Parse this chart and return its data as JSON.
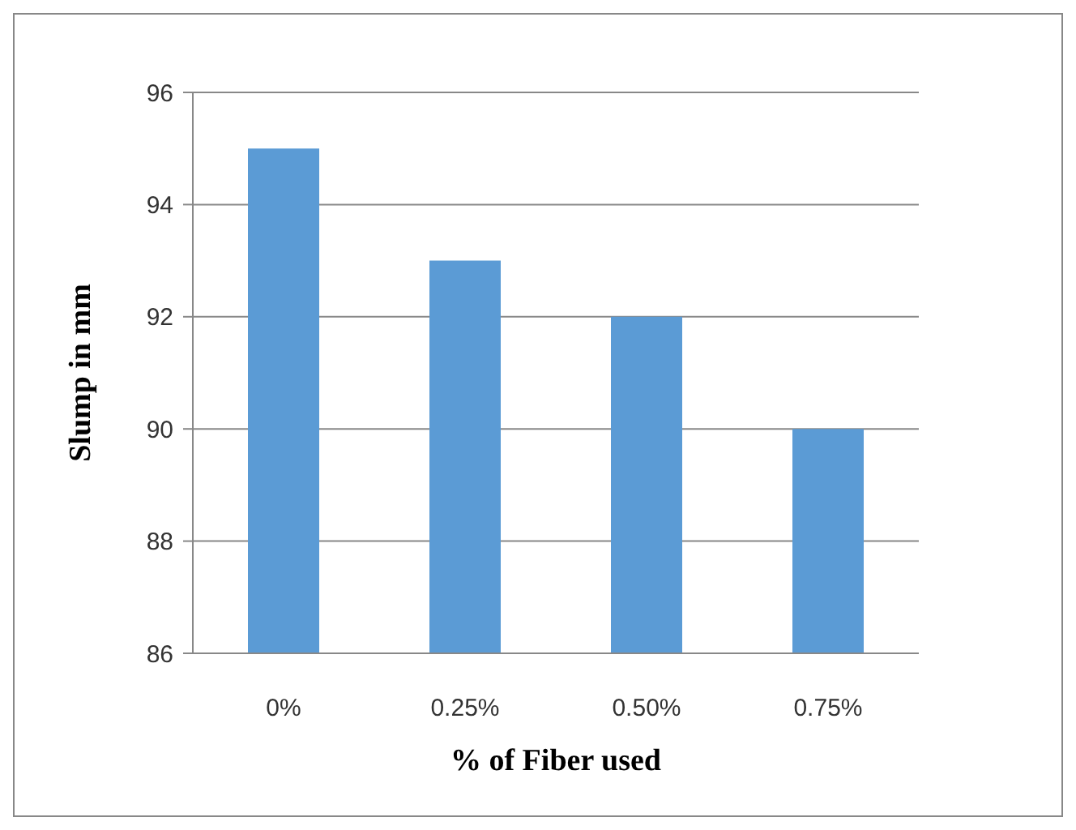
{
  "chart_data": {
    "type": "bar",
    "xlabel": "% of Fiber used",
    "ylabel": "Slump in mm",
    "categories": [
      "0%",
      "0.25%",
      "0.50%",
      "0.75%"
    ],
    "values": [
      95,
      93,
      92,
      90
    ],
    "color": "#5b9bd5",
    "ylim": [
      86,
      96
    ],
    "yticks": [
      86,
      88,
      90,
      92,
      94,
      96
    ],
    "grid": "y"
  }
}
